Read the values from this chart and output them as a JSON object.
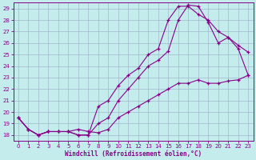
{
  "xlabel": "Windchill (Refroidissement éolien,°C)",
  "xlim": [
    -0.5,
    23.5
  ],
  "ylim": [
    17.5,
    29.5
  ],
  "xticks": [
    0,
    1,
    2,
    3,
    4,
    5,
    6,
    7,
    8,
    9,
    10,
    11,
    12,
    13,
    14,
    15,
    16,
    17,
    18,
    19,
    20,
    21,
    22,
    23
  ],
  "yticks": [
    18,
    19,
    20,
    21,
    22,
    23,
    24,
    25,
    26,
    27,
    28,
    29
  ],
  "background_color": "#c5eced",
  "grid_color": "#a0b8cc",
  "line_color": "#880088",
  "line1_x": [
    0,
    1,
    2,
    3,
    4,
    5,
    6,
    7,
    8,
    9,
    10,
    11,
    12,
    13,
    14,
    15,
    16,
    17,
    18,
    19,
    20,
    21,
    22,
    23
  ],
  "line1_y": [
    19.5,
    18.5,
    18.0,
    18.3,
    18.3,
    18.3,
    18.0,
    18.0,
    20.5,
    21.0,
    22.3,
    23.2,
    23.8,
    25.0,
    25.5,
    28.0,
    29.2,
    29.2,
    28.5,
    28.0,
    27.0,
    26.5,
    25.5,
    23.2
  ],
  "line2_x": [
    0,
    1,
    2,
    3,
    4,
    5,
    6,
    7,
    8,
    9,
    10,
    11,
    12,
    13,
    14,
    15,
    16,
    17,
    18,
    19,
    20,
    21,
    22,
    23
  ],
  "line2_y": [
    19.5,
    18.5,
    18.0,
    18.3,
    18.3,
    18.3,
    18.0,
    18.0,
    19.0,
    19.5,
    21.0,
    22.0,
    23.0,
    24.0,
    24.5,
    25.3,
    28.0,
    29.3,
    29.2,
    27.8,
    26.0,
    26.5,
    25.8,
    25.2
  ],
  "line3_x": [
    0,
    1,
    2,
    3,
    4,
    5,
    6,
    7,
    8,
    9,
    10,
    11,
    12,
    13,
    14,
    15,
    16,
    17,
    18,
    19,
    20,
    21,
    22,
    23
  ],
  "line3_y": [
    19.5,
    18.5,
    18.0,
    18.3,
    18.3,
    18.3,
    18.5,
    18.3,
    18.2,
    18.5,
    19.5,
    20.0,
    20.5,
    21.0,
    21.5,
    22.0,
    22.5,
    22.5,
    22.8,
    22.5,
    22.5,
    22.7,
    22.8,
    23.2
  ]
}
